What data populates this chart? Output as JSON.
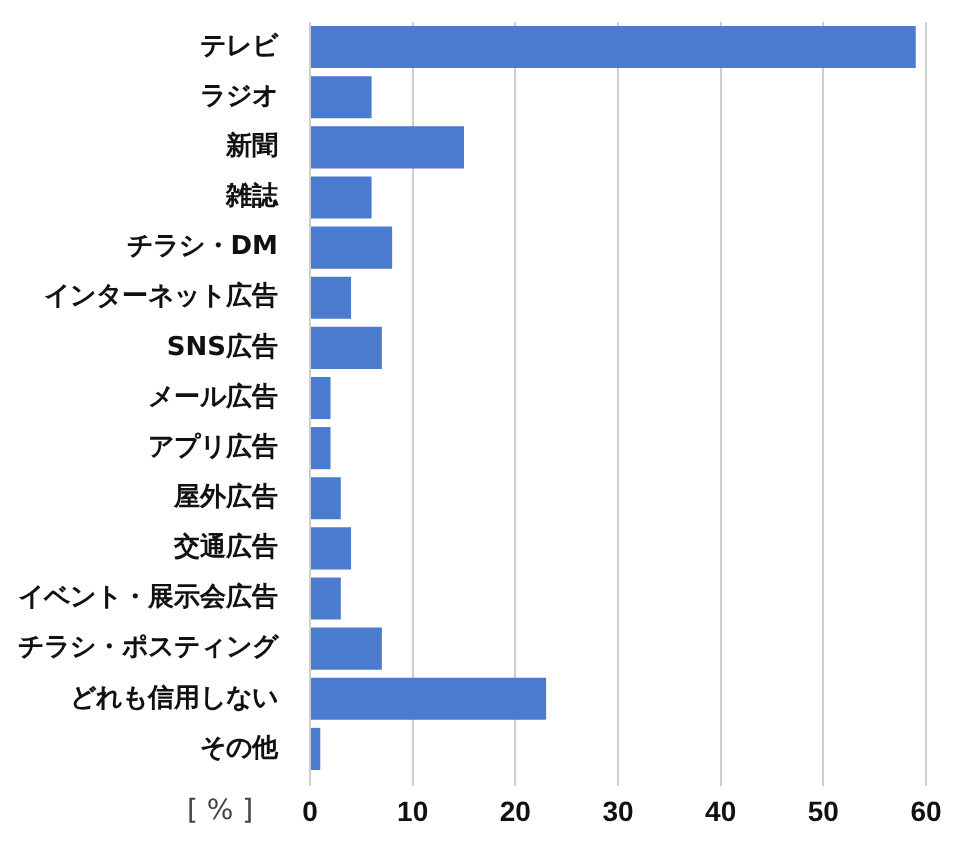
{
  "chart_data": {
    "type": "bar",
    "orientation": "horizontal",
    "categories": [
      "テレビ",
      "ラジオ",
      "新聞",
      "雑誌",
      "チラシ・DM",
      "インターネット広告",
      "SNS広告",
      "メール広告",
      "アプリ広告",
      "屋外広告",
      "交通広告",
      "イベント・展示会広告",
      "チラシ・ポスティング",
      "どれも信用しない",
      "その他"
    ],
    "values": [
      59,
      6,
      15,
      6,
      8,
      4,
      7,
      2,
      2,
      3,
      4,
      3,
      7,
      23,
      1
    ],
    "color": "#4a7bcf",
    "xlabel": "[ % ]",
    "xlim": [
      0,
      60
    ],
    "xticks": [
      0,
      10,
      20,
      30,
      40,
      50,
      60
    ],
    "grid": "x"
  }
}
